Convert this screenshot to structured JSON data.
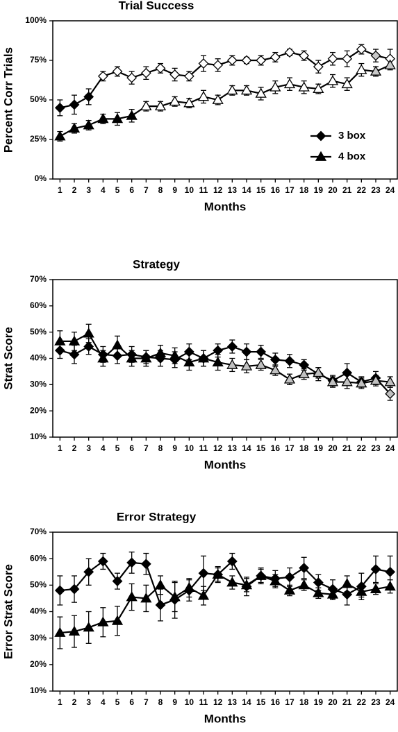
{
  "chart_data": [
    {
      "type": "line",
      "title": "Trial Success",
      "ylabel": "Percent Corr Trials",
      "xlabel": "Months",
      "categories": [
        "1",
        "2",
        "3",
        "4",
        "5",
        "6",
        "7",
        "8",
        "9",
        "10",
        "11",
        "12",
        "13",
        "14",
        "15",
        "16",
        "17",
        "18",
        "19",
        "20",
        "21",
        "22",
        "23",
        "24"
      ],
      "ylim": [
        0,
        100
      ],
      "yticks": [
        {
          "value": 0,
          "label": "0%"
        },
        {
          "value": 25,
          "label": "25%"
        },
        {
          "value": 50,
          "label": "50%"
        },
        {
          "value": 75,
          "label": "75%"
        },
        {
          "value": 100,
          "label": "100%"
        }
      ],
      "legend": "lower right",
      "series": [
        {
          "name": "3  box",
          "color": "#000000",
          "marker": "diamond",
          "values": [
            45,
            47,
            52,
            65,
            68,
            64,
            67,
            70,
            66,
            65,
            73,
            72,
            75,
            75,
            75,
            77,
            80,
            78,
            71,
            76,
            76,
            82,
            78,
            76
          ],
          "errors": [
            5,
            6,
            5,
            3,
            3,
            4,
            4,
            3,
            4,
            3,
            5,
            4,
            3,
            2,
            3,
            3,
            2,
            3,
            4,
            4,
            5,
            3,
            4,
            6
          ],
          "point_colors": [
            "#000000",
            "#000000",
            "#000000",
            "#ffffff",
            "#ffffff",
            "#ffffff",
            "#ffffff",
            "#ffffff",
            "#ffffff",
            "#ffffff",
            "#ffffff",
            "#ffffff",
            "#ffffff",
            "#ffffff",
            "#ffffff",
            "#ffffff",
            "#ffffff",
            "#ffffff",
            "#ffffff",
            "#ffffff",
            "#ffffff",
            "#ffffff",
            "#c8c8c8",
            "#ffffff"
          ]
        },
        {
          "name": "4 box",
          "color": "#000000",
          "marker": "triangle",
          "values": [
            27,
            32,
            34,
            38,
            38,
            40,
            46,
            46,
            49,
            48,
            52,
            50,
            56,
            56,
            54,
            58,
            60,
            58,
            57,
            62,
            60,
            69,
            68,
            72
          ],
          "errors": [
            3,
            3,
            3,
            3,
            4,
            4,
            3,
            3,
            3,
            3,
            4,
            3,
            3,
            3,
            4,
            4,
            4,
            4,
            3,
            4,
            4,
            4,
            3,
            3
          ],
          "point_colors": [
            "#000000",
            "#000000",
            "#000000",
            "#000000",
            "#000000",
            "#000000",
            "#ffffff",
            "#ffffff",
            "#ffffff",
            "#ffffff",
            "#ffffff",
            "#ffffff",
            "#ffffff",
            "#ffffff",
            "#ffffff",
            "#ffffff",
            "#ffffff",
            "#ffffff",
            "#ffffff",
            "#ffffff",
            "#ffffff",
            "#ffffff",
            "#c8c8c8",
            "#c8c8c8"
          ]
        }
      ]
    },
    {
      "type": "line",
      "title": "Strategy",
      "ylabel": "Strat Score",
      "xlabel": "Months",
      "categories": [
        "1",
        "2",
        "3",
        "4",
        "5",
        "6",
        "7",
        "8",
        "9",
        "10",
        "11",
        "12",
        "13",
        "14",
        "15",
        "16",
        "17",
        "18",
        "19",
        "20",
        "21",
        "22",
        "23",
        "24"
      ],
      "ylim": [
        10,
        70
      ],
      "yticks": [
        {
          "value": 10,
          "label": "10%"
        },
        {
          "value": 20,
          "label": "20%"
        },
        {
          "value": 30,
          "label": "30%"
        },
        {
          "value": 40,
          "label": "40%"
        },
        {
          "value": 50,
          "label": "50%"
        },
        {
          "value": 60,
          "label": "60%"
        },
        {
          "value": 70,
          "label": "70%"
        }
      ],
      "series": [
        {
          "color": "#000000",
          "marker": "diamond",
          "values": [
            43,
            41.5,
            44.5,
            41.5,
            41,
            41.5,
            40.5,
            40,
            39.5,
            42.5,
            40,
            43,
            44.5,
            42.5,
            42.5,
            39.5,
            39,
            37.5,
            34,
            31.5,
            34.5,
            31,
            32.5,
            26.5
          ],
          "errors": [
            3,
            3.5,
            3,
            3,
            3,
            3,
            2.5,
            3,
            3,
            3,
            3,
            2.5,
            2.5,
            3,
            2.5,
            2.5,
            2.5,
            2,
            2.5,
            2,
            3.5,
            2,
            2.5,
            2.5
          ],
          "point_colors": [
            "#000000",
            "#000000",
            "#000000",
            "#000000",
            "#000000",
            "#000000",
            "#000000",
            "#000000",
            "#000000",
            "#000000",
            "#000000",
            "#000000",
            "#000000",
            "#000000",
            "#000000",
            "#000000",
            "#000000",
            "#000000",
            "#c0c0c0",
            "#000000",
            "#000000",
            "#000000",
            "#000000",
            "#c0c0c0"
          ]
        },
        {
          "color": "#000000",
          "marker": "triangle",
          "values": [
            46.5,
            46.5,
            49.5,
            40,
            45,
            40,
            40,
            42,
            41,
            38.5,
            40,
            38.5,
            37.5,
            37,
            37.5,
            35.5,
            32,
            34,
            34.5,
            31,
            31,
            30.5,
            31.5,
            31
          ],
          "errors": [
            4,
            3.5,
            3.5,
            3,
            3.5,
            3,
            3,
            3,
            3,
            3,
            3,
            3,
            2.5,
            2.5,
            2,
            2,
            2,
            2,
            2,
            2,
            2.5,
            2,
            2,
            2
          ],
          "point_colors": [
            "#000000",
            "#000000",
            "#000000",
            "#000000",
            "#000000",
            "#000000",
            "#000000",
            "#000000",
            "#000000",
            "#000000",
            "#000000",
            "#000000",
            "#c0c0c0",
            "#c0c0c0",
            "#c0c0c0",
            "#c0c0c0",
            "#c0c0c0",
            "#c0c0c0",
            "#c0c0c0",
            "#c0c0c0",
            "#c0c0c0",
            "#c0c0c0",
            "#c0c0c0",
            "#c0c0c0"
          ]
        }
      ]
    },
    {
      "type": "line",
      "title": "Error Strategy",
      "ylabel": "Error Strat Score",
      "xlabel": "Months",
      "categories": [
        "1",
        "2",
        "3",
        "4",
        "5",
        "6",
        "7",
        "8",
        "9",
        "10",
        "11",
        "12",
        "13",
        "14",
        "15",
        "16",
        "17",
        "18",
        "19",
        "20",
        "21",
        "22",
        "23",
        "24"
      ],
      "ylim": [
        10,
        70
      ],
      "yticks": [
        {
          "value": 10,
          "label": "10%"
        },
        {
          "value": 20,
          "label": "20%"
        },
        {
          "value": 30,
          "label": "30%"
        },
        {
          "value": 40,
          "label": "40%"
        },
        {
          "value": 50,
          "label": "50%"
        },
        {
          "value": 60,
          "label": "60%"
        },
        {
          "value": 70,
          "label": "70%"
        }
      ],
      "series": [
        {
          "color": "#000000",
          "marker": "diamond",
          "values": [
            48,
            48.5,
            55,
            59,
            51.5,
            58.5,
            58,
            42.5,
            44.5,
            48,
            54.5,
            54,
            59,
            49.5,
            53.5,
            52.5,
            53,
            56.5,
            51,
            48.5,
            46.5,
            49.5,
            56,
            55
          ],
          "errors": [
            5.5,
            5,
            5,
            3,
            3,
            4,
            4,
            6,
            7,
            4,
            6.5,
            3,
            3,
            3.5,
            3,
            3,
            3.5,
            4,
            3,
            3.5,
            4,
            5,
            5,
            6
          ],
          "point_colors": [
            "#000000",
            "#000000",
            "#000000",
            "#000000",
            "#000000",
            "#000000",
            "#000000",
            "#000000",
            "#000000",
            "#000000",
            "#000000",
            "#000000",
            "#000000",
            "#000000",
            "#000000",
            "#000000",
            "#000000",
            "#000000",
            "#000000",
            "#000000",
            "#000000",
            "#000000",
            "#000000",
            "#000000"
          ]
        },
        {
          "color": "#000000",
          "marker": "triangle",
          "values": [
            32,
            32.5,
            34,
            36,
            36.5,
            45.5,
            45,
            50,
            45.5,
            49,
            46,
            54,
            51,
            50,
            53.5,
            51.5,
            48,
            50,
            47,
            46.5,
            50.5,
            47.5,
            48.5,
            49.5
          ],
          "errors": [
            6,
            6,
            6,
            5.5,
            5.5,
            5,
            5,
            3.5,
            5.5,
            3.5,
            3.5,
            2.5,
            2.5,
            2.5,
            2.5,
            2.5,
            2,
            2,
            2,
            2,
            3,
            2,
            2,
            2.5
          ],
          "point_colors": [
            "#000000",
            "#000000",
            "#000000",
            "#000000",
            "#000000",
            "#000000",
            "#000000",
            "#000000",
            "#000000",
            "#000000",
            "#000000",
            "#000000",
            "#000000",
            "#000000",
            "#000000",
            "#000000",
            "#000000",
            "#000000",
            "#000000",
            "#000000",
            "#000000",
            "#000000",
            "#000000",
            "#000000"
          ]
        }
      ]
    }
  ]
}
